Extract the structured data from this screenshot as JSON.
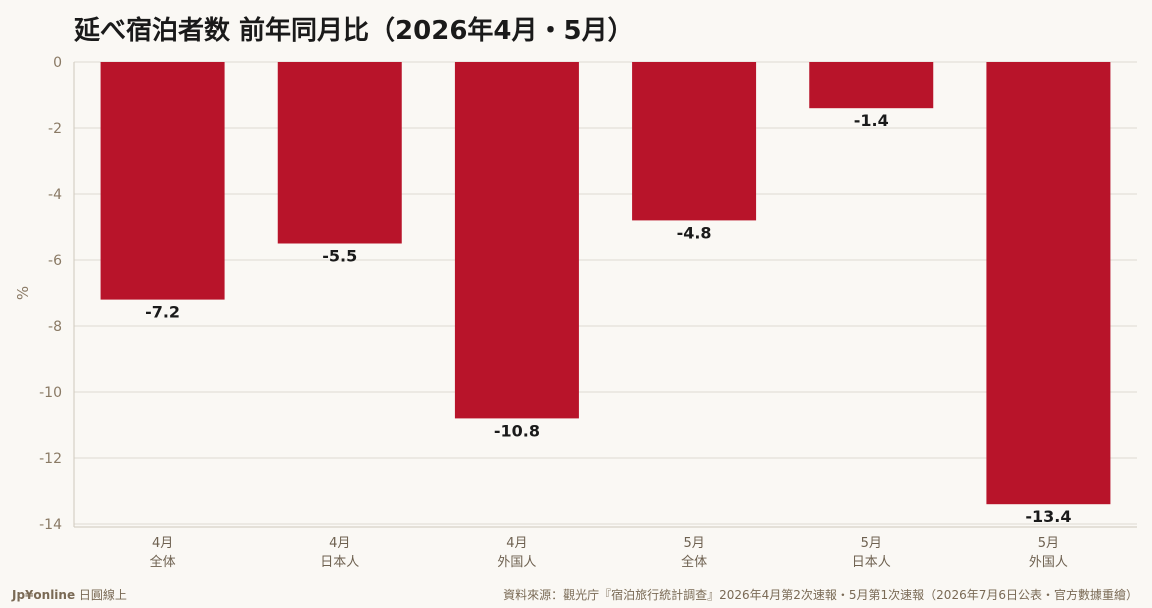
{
  "chart_data": {
    "type": "bar",
    "title": "延べ宿泊者数 前年同月比（2026年4月・5月）",
    "ylabel": "%",
    "xlabel": "",
    "categories": [
      {
        "month": "4月",
        "group": "全体"
      },
      {
        "month": "4月",
        "group": "日本人"
      },
      {
        "month": "4月",
        "group": "外国人"
      },
      {
        "month": "5月",
        "group": "全体"
      },
      {
        "month": "5月",
        "group": "日本人"
      },
      {
        "month": "5月",
        "group": "外国人"
      }
    ],
    "values": [
      -7.2,
      -5.5,
      -10.8,
      -4.8,
      -1.4,
      -13.4
    ],
    "value_labels": [
      "-7.2",
      "-5.5",
      "-10.8",
      "-4.8",
      "-1.4",
      "-13.4"
    ],
    "ylim": [
      -14,
      0
    ],
    "yticks": [
      0,
      -2,
      -4,
      -6,
      -8,
      -10,
      -12,
      -14
    ],
    "ytick_labels": [
      "0",
      "-2",
      "-4",
      "-6",
      "-8",
      "-10",
      "-12",
      "-14"
    ],
    "grid": true,
    "bar_color": "#b8142a"
  },
  "footer": {
    "brand_bold": "Jp¥online",
    "brand_rest": " 日圓線上",
    "source": "資料來源：觀光庁『宿泊旅行統計調查』2026年4月第2次速報・5月第1次速報（2026年7月6日公表・官方數據重繪）"
  }
}
